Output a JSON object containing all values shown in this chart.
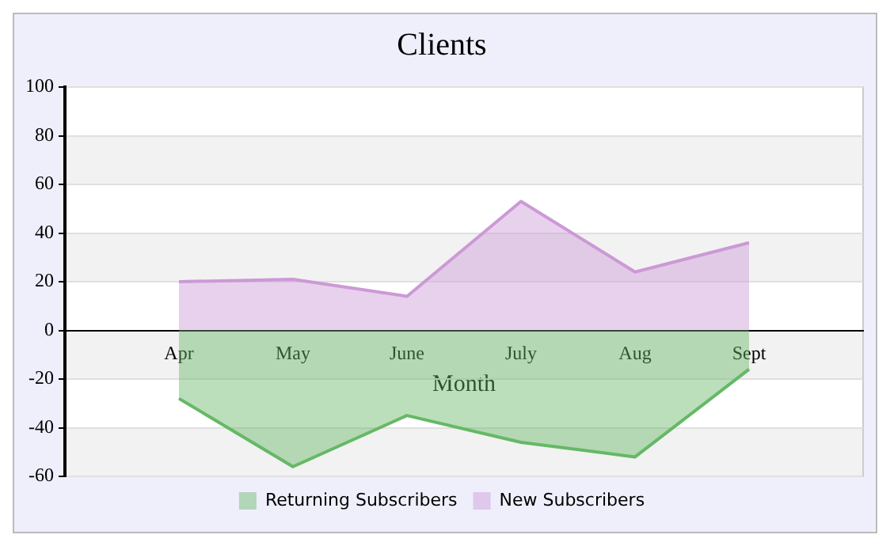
{
  "chart_data": {
    "type": "area",
    "title": "Clients",
    "xlabel": "Month",
    "categories": [
      "Apr",
      "May",
      "June",
      "July",
      "Aug",
      "Sept"
    ],
    "series": [
      {
        "name": "Returning Subscribers",
        "color": "#66b866",
        "values": [
          -28,
          -56,
          -35,
          -46,
          -52,
          -16
        ]
      },
      {
        "name": "New Subscribers",
        "color": "#cc99d6",
        "values": [
          20,
          21,
          14,
          53,
          24,
          36
        ]
      }
    ],
    "ylim": [
      -60,
      100
    ],
    "yticks": [
      -60,
      -40,
      -20,
      0,
      20,
      40,
      60,
      80,
      100
    ],
    "grid": "y",
    "legend": "bottom"
  }
}
